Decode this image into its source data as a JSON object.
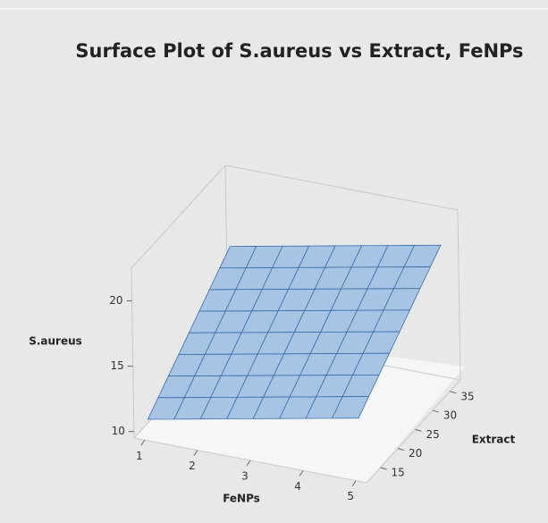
{
  "chart_data": {
    "type": "surface",
    "title": "Surface Plot of S.aureus vs Extract, FeNPs",
    "x_label": "FeNPs",
    "y_label": "Extract",
    "z_label": "S.aureus",
    "x": [
      1,
      1.5,
      2,
      2.5,
      3,
      3.5,
      4,
      4.5,
      5
    ],
    "y": [
      12,
      15,
      18,
      21,
      24,
      27,
      30,
      33,
      36
    ],
    "z": [
      [
        10.8,
        11.58,
        12.36,
        13.14,
        13.92,
        14.7,
        15.48,
        16.26,
        17.04
      ],
      [
        11.2,
        11.98,
        12.76,
        13.54,
        14.32,
        15.1,
        15.88,
        16.66,
        17.44
      ],
      [
        11.6,
        12.38,
        13.16,
        13.94,
        14.72,
        15.5,
        16.28,
        17.06,
        17.84
      ],
      [
        12,
        12.78,
        13.56,
        14.34,
        15.12,
        15.9,
        16.68,
        17.46,
        18.24
      ],
      [
        12.4,
        13.18,
        13.96,
        14.74,
        15.52,
        16.3,
        17.08,
        17.86,
        18.64
      ],
      [
        12.8,
        13.58,
        14.36,
        15.14,
        15.92,
        16.7,
        17.48,
        18.26,
        19.04
      ],
      [
        13.2,
        13.98,
        14.76,
        15.54,
        16.32,
        17.1,
        17.88,
        18.66,
        19.44
      ],
      [
        13.6,
        14.38,
        15.16,
        15.94,
        16.72,
        17.5,
        18.28,
        19.06,
        19.84
      ],
      [
        14,
        14.78,
        15.56,
        16.34,
        17.12,
        17.9,
        18.68,
        19.46,
        20.24
      ]
    ],
    "color": "#a8c4e4",
    "edge_color": "#3a6ea5",
    "xlim": [
      0.8,
      5.2
    ],
    "ylim": [
      11,
      38
    ],
    "zlim": [
      9.5,
      22.5
    ],
    "xticks": [
      1,
      2,
      3,
      4,
      5
    ],
    "yticks": [
      15,
      20,
      25,
      30,
      35
    ],
    "zticks": [
      10,
      15,
      20
    ]
  }
}
